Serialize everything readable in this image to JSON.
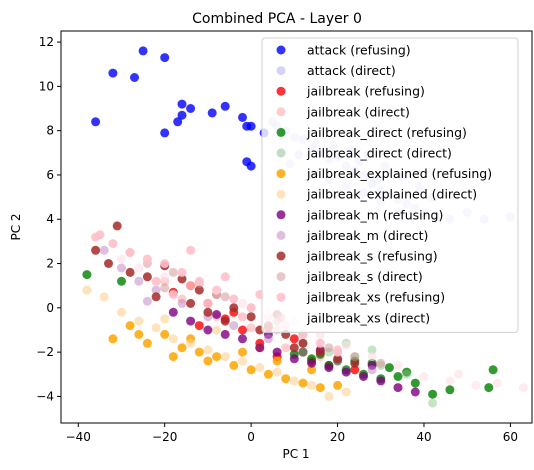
{
  "chart_data": {
    "type": "scatter",
    "title": "Combined PCA - Layer 0",
    "xlabel": "PC 1",
    "ylabel": "PC 2",
    "xlim": [
      -44,
      65
    ],
    "ylim": [
      -5.2,
      12.5
    ],
    "xticks": [
      -40,
      -20,
      0,
      20,
      40,
      60
    ],
    "yticks": [
      -4,
      -2,
      0,
      2,
      4,
      6,
      8,
      10,
      12
    ],
    "grid": false,
    "legend_position": "top-right",
    "series": [
      {
        "name": "attack (refusing)",
        "color": "#0000ff",
        "opacity": 0.8,
        "points": [
          [
            -25,
            11.6
          ],
          [
            -20,
            11.3
          ],
          [
            -32,
            10.6
          ],
          [
            -27,
            10.4
          ],
          [
            -36,
            8.4
          ],
          [
            -16,
            9.2
          ],
          [
            -14,
            9.0
          ],
          [
            -16,
            8.7
          ],
          [
            -6,
            9.1
          ],
          [
            -9,
            8.8
          ],
          [
            -2,
            8.6
          ],
          [
            -17,
            8.4
          ],
          [
            -1,
            8.2
          ],
          [
            0,
            8.2
          ],
          [
            -20,
            7.9
          ],
          [
            -1,
            6.6
          ],
          [
            0,
            6.4
          ],
          [
            3,
            7.9
          ]
        ]
      },
      {
        "name": "attack (direct)",
        "color": "#8080f0",
        "opacity": 0.35,
        "points": [
          [
            5,
            8.4
          ],
          [
            8,
            8.0
          ],
          [
            10,
            7.7
          ],
          [
            12,
            7.6
          ],
          [
            14,
            7.2
          ],
          [
            16,
            7.0
          ],
          [
            18,
            6.7
          ],
          [
            20,
            6.8
          ],
          [
            22,
            6.4
          ],
          [
            24,
            6.2
          ],
          [
            26,
            6.0
          ],
          [
            28,
            5.6
          ],
          [
            30,
            5.3
          ],
          [
            32,
            5.1
          ],
          [
            34,
            4.9
          ],
          [
            36,
            4.7
          ],
          [
            38,
            4.5
          ],
          [
            40,
            4.3
          ],
          [
            43,
            4.1
          ],
          [
            46,
            4.0
          ],
          [
            50,
            4.3
          ],
          [
            54,
            4.0
          ],
          [
            60,
            4.1
          ],
          [
            9,
            6.5
          ],
          [
            14,
            6.0
          ],
          [
            18,
            5.8
          ],
          [
            22,
            5.5
          ],
          [
            26,
            5.2
          ],
          [
            30,
            4.8
          ],
          [
            34,
            4.3
          ],
          [
            7,
            7.0
          ],
          [
            11,
            6.9
          ],
          [
            15,
            7.4
          ],
          [
            19,
            7.3
          ],
          [
            23,
            7.1
          ],
          [
            27,
            6.9
          ],
          [
            31,
            6.4
          ],
          [
            35,
            5.9
          ],
          [
            39,
            5.4
          ],
          [
            42,
            5.0
          ],
          [
            6,
            8.2
          ],
          [
            25,
            6.6
          ],
          [
            29,
            5.8
          ]
        ]
      },
      {
        "name": "jailbreak (refusing)",
        "color": "#ff0000",
        "opacity": 0.8,
        "points": [
          [
            -18,
            0.7
          ],
          [
            -14,
            1.0
          ],
          [
            -10,
            0.2
          ],
          [
            -6,
            -0.5
          ],
          [
            -2,
            -1.0
          ],
          [
            2,
            -1.6
          ],
          [
            6,
            -2.2
          ],
          [
            10,
            -1.4
          ],
          [
            14,
            -2.4
          ],
          [
            -12,
            -0.8
          ],
          [
            -4,
            -0.2
          ],
          [
            4,
            -0.9
          ],
          [
            12,
            -2.0
          ],
          [
            18,
            -2.6
          ],
          [
            24,
            -2.8
          ]
        ]
      },
      {
        "name": "jailbreak (direct)",
        "color": "#ff9090",
        "opacity": 0.45,
        "points": [
          [
            -16,
            0.4
          ],
          [
            -8,
            -0.4
          ],
          [
            0,
            -0.9
          ],
          [
            8,
            -1.8
          ],
          [
            16,
            -2.2
          ],
          [
            -20,
            1.2
          ],
          [
            6,
            -0.6
          ],
          [
            20,
            -1.9
          ]
        ]
      },
      {
        "name": "jailbreak_direct (refusing)",
        "color": "#008000",
        "opacity": 0.8,
        "points": [
          [
            -38,
            1.5
          ],
          [
            -30,
            1.2
          ],
          [
            10,
            -2.1
          ],
          [
            14,
            -2.3
          ],
          [
            18,
            -2.6
          ],
          [
            22,
            -2.8
          ],
          [
            26,
            -3.0
          ],
          [
            30,
            -3.2
          ],
          [
            34,
            -3.1
          ],
          [
            38,
            -3.4
          ],
          [
            42,
            -3.9
          ],
          [
            46,
            -3.7
          ],
          [
            55,
            -3.6
          ],
          [
            56,
            -2.8
          ],
          [
            20,
            -2.4
          ],
          [
            24,
            -2.4
          ],
          [
            28,
            -2.5
          ],
          [
            32,
            -2.7
          ],
          [
            36,
            -2.9
          ],
          [
            12,
            -2.0
          ],
          [
            16,
            -2.1
          ]
        ]
      },
      {
        "name": "jailbreak_direct (direct)",
        "color": "#80c080",
        "opacity": 0.45,
        "points": [
          [
            12,
            -1.6
          ],
          [
            18,
            -2.0
          ],
          [
            24,
            -2.2
          ],
          [
            30,
            -2.6
          ],
          [
            36,
            -3.0
          ],
          [
            42,
            -4.3
          ],
          [
            22,
            -1.6
          ],
          [
            28,
            -1.9
          ]
        ]
      },
      {
        "name": "jailbreak_explained (refusing)",
        "color": "#ffa500",
        "opacity": 0.85,
        "points": [
          [
            -32,
            -1.4
          ],
          [
            -28,
            -0.8
          ],
          [
            -24,
            -1.6
          ],
          [
            -20,
            -1.2
          ],
          [
            -16,
            -1.8
          ],
          [
            -12,
            -2.0
          ],
          [
            -8,
            -2.2
          ],
          [
            -4,
            -2.6
          ],
          [
            0,
            -2.8
          ],
          [
            4,
            -3.0
          ],
          [
            8,
            -3.2
          ],
          [
            12,
            -3.4
          ],
          [
            16,
            -3.6
          ],
          [
            20,
            -3.5
          ],
          [
            -18,
            -2.2
          ],
          [
            -10,
            -2.4
          ],
          [
            -2,
            -2.0
          ],
          [
            6,
            -2.4
          ],
          [
            14,
            -2.8
          ],
          [
            -26,
            -1.2
          ],
          [
            -14,
            -1.4
          ],
          [
            2,
            -1.8
          ]
        ]
      },
      {
        "name": "jailbreak_explained (direct)",
        "color": "#ffd090",
        "opacity": 0.6,
        "points": [
          [
            -38,
            0.8
          ],
          [
            -34,
            0.5
          ],
          [
            -30,
            -0.2
          ],
          [
            -26,
            -0.6
          ],
          [
            -22,
            -0.9
          ],
          [
            -18,
            -1.4
          ],
          [
            -14,
            -1.6
          ],
          [
            -10,
            -1.9
          ],
          [
            -6,
            -2.2
          ],
          [
            -2,
            -2.4
          ],
          [
            2,
            -2.7
          ],
          [
            6,
            -2.9
          ],
          [
            10,
            -3.3
          ],
          [
            14,
            -3.5
          ],
          [
            18,
            -4.0
          ],
          [
            22,
            -3.8
          ],
          [
            -20,
            -0.5
          ],
          [
            -8,
            -1.0
          ]
        ]
      },
      {
        "name": "jailbreak_m (refusing)",
        "color": "#800080",
        "opacity": 0.8,
        "points": [
          [
            -18,
            -0.2
          ],
          [
            -14,
            -0.6
          ],
          [
            -10,
            -1.0
          ],
          [
            -6,
            -1.2
          ],
          [
            -2,
            -1.4
          ],
          [
            2,
            -1.8
          ],
          [
            6,
            -2.0
          ],
          [
            10,
            -2.3
          ],
          [
            14,
            -2.5
          ],
          [
            18,
            -2.7
          ],
          [
            22,
            -2.9
          ],
          [
            26,
            -3.1
          ],
          [
            30,
            -3.3
          ],
          [
            34,
            -3.6
          ],
          [
            38,
            -3.8
          ],
          [
            -8,
            -0.3
          ],
          [
            4,
            -1.2
          ],
          [
            16,
            -1.9
          ],
          [
            28,
            -2.6
          ]
        ]
      },
      {
        "name": "jailbreak_m (direct)",
        "color": "#c080c0",
        "opacity": 0.5,
        "points": [
          [
            -34,
            2.6
          ],
          [
            -30,
            1.8
          ],
          [
            -26,
            1.2
          ],
          [
            -22,
            0.8
          ],
          [
            -16,
            0.2
          ],
          [
            -10,
            -0.4
          ],
          [
            -4,
            -0.8
          ],
          [
            4,
            -1.4
          ],
          [
            12,
            -2.0
          ],
          [
            20,
            -2.4
          ],
          [
            28,
            -2.8
          ],
          [
            -24,
            0.3
          ]
        ]
      },
      {
        "name": "jailbreak_s (refusing)",
        "color": "#a52a2a",
        "opacity": 0.85,
        "points": [
          [
            -31,
            3.7
          ],
          [
            -36,
            2.6
          ],
          [
            -33,
            2.0
          ],
          [
            -28,
            1.6
          ],
          [
            -24,
            1.4
          ],
          [
            -20,
            1.9
          ],
          [
            -16,
            1.3
          ],
          [
            -12,
            0.8
          ],
          [
            -8,
            0.6
          ],
          [
            -4,
            0.0
          ],
          [
            0,
            -0.4
          ],
          [
            4,
            -0.8
          ],
          [
            8,
            -1.2
          ],
          [
            12,
            -1.6
          ],
          [
            16,
            -2.0
          ],
          [
            20,
            -2.3
          ],
          [
            24,
            -2.5
          ],
          [
            -14,
            0.2
          ],
          [
            -6,
            -0.6
          ],
          [
            2,
            -1.0
          ],
          [
            10,
            -1.8
          ],
          [
            -22,
            0.5
          ],
          [
            -10,
            -0.2
          ],
          [
            6,
            -0.3
          ]
        ]
      },
      {
        "name": "jailbreak_s (direct)",
        "color": "#d09090",
        "opacity": 0.5,
        "points": [
          [
            -28,
            2.5
          ],
          [
            -24,
            2.0
          ],
          [
            -18,
            1.6
          ],
          [
            -12,
            1.1
          ],
          [
            -6,
            0.5
          ],
          [
            0,
            0.0
          ],
          [
            6,
            -0.6
          ],
          [
            12,
            -1.2
          ],
          [
            18,
            -1.8
          ],
          [
            24,
            -2.2
          ],
          [
            -20,
            0.9
          ],
          [
            30,
            -2.5
          ]
        ]
      },
      {
        "name": "jailbreak_xs (refusing)",
        "color": "#ffc0cb",
        "opacity": 0.9,
        "points": [
          [
            -36,
            3.2
          ],
          [
            -35,
            3.3
          ],
          [
            -32,
            2.9
          ],
          [
            -28,
            2.5
          ],
          [
            -24,
            2.2
          ],
          [
            -20,
            2.0
          ],
          [
            -16,
            1.6
          ],
          [
            -12,
            1.2
          ],
          [
            -8,
            0.8
          ],
          [
            -4,
            0.4
          ],
          [
            0,
            0.0
          ],
          [
            4,
            -0.4
          ],
          [
            8,
            -0.8
          ],
          [
            12,
            -1.2
          ],
          [
            16,
            -1.6
          ],
          [
            20,
            -2.0
          ],
          [
            -22,
            1.2
          ],
          [
            -18,
            0.6
          ],
          [
            -14,
            2.6
          ],
          [
            -10,
            0.2
          ],
          [
            -6,
            1.4
          ],
          [
            -2,
            -0.4
          ],
          [
            2,
            0.6
          ],
          [
            6,
            -1.0
          ]
        ]
      },
      {
        "name": "jailbreak_xs (direct)",
        "color": "#ffe0e6",
        "opacity": 0.6,
        "points": [
          [
            -30,
            2.2
          ],
          [
            -26,
            1.8
          ],
          [
            -20,
            1.4
          ],
          [
            -14,
            1.0
          ],
          [
            -8,
            0.6
          ],
          [
            -2,
            0.2
          ],
          [
            4,
            -0.2
          ],
          [
            10,
            -0.6
          ],
          [
            16,
            -1.2
          ],
          [
            22,
            -1.7
          ],
          [
            28,
            -2.2
          ],
          [
            34,
            -2.6
          ],
          [
            40,
            -3.1
          ],
          [
            46,
            -3.3
          ],
          [
            52,
            -3.5
          ],
          [
            63,
            -3.6
          ],
          [
            57,
            -3.4
          ],
          [
            48,
            -3.0
          ]
        ]
      }
    ]
  }
}
